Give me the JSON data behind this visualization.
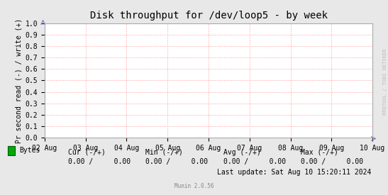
{
  "title": "Disk throughput for /dev/loop5 - by week",
  "ylabel": "Pr second read (-) / write (+)",
  "background_color": "#e8e8e8",
  "plot_background_color": "#ffffff",
  "grid_color": "#ff9999",
  "xlim_dates": [
    "02 Aug",
    "03 Aug",
    "04 Aug",
    "05 Aug",
    "06 Aug",
    "07 Aug",
    "08 Aug",
    "09 Aug",
    "10 Aug"
  ],
  "ylim": [
    0.0,
    1.0
  ],
  "yticks": [
    0.0,
    0.1,
    0.2,
    0.3,
    0.4,
    0.5,
    0.6,
    0.7,
    0.8,
    0.9,
    1.0
  ],
  "legend_label": "Bytes",
  "legend_color": "#00aa00",
  "legend_edge_color": "#005500",
  "cur_label": "Cur (-/+)",
  "cur_val": "0.00 /     0.00",
  "min_label": "Min (-/+)",
  "min_val": "0.00 /     0.00",
  "avg_label": "Avg (-/+)",
  "avg_val": "0.00 /     0.00",
  "max_label": "Max (-/+)",
  "max_val": "0.00 /     0.00",
  "last_update": "Last update: Sat Aug 10 15:20:11 2024",
  "munin_version": "Munin 2.0.56",
  "rrdtool_label": "RRDTOOL / TOBI OETIKER",
  "title_fontsize": 10,
  "axis_fontsize": 7,
  "legend_fontsize": 7,
  "figsize": [
    5.47,
    2.75
  ],
  "dpi": 100
}
